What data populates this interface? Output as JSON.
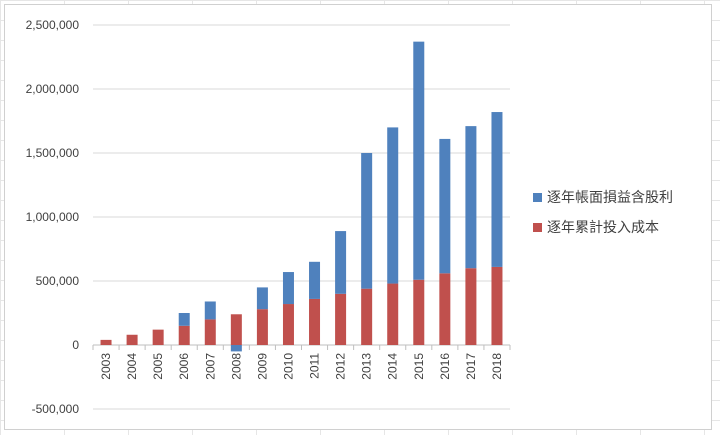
{
  "chart_data": {
    "type": "bar",
    "stacked": true,
    "title": "",
    "xlabel": "",
    "ylabel": "",
    "ylim": [
      -500000,
      2500000
    ],
    "ytick_step": 500000,
    "ytick_labels": [
      "-500,000",
      "0",
      "500,000",
      "1,000,000",
      "1,500,000",
      "2,000,000",
      "2,500,000"
    ],
    "grid": true,
    "legend_position": "right",
    "categories": [
      "2003",
      "2004",
      "2005",
      "2006",
      "2007",
      "2008",
      "2009",
      "2010",
      "2011",
      "2012",
      "2013",
      "2014",
      "2015",
      "2016",
      "2017",
      "2018"
    ],
    "series": [
      {
        "name": "逐年累計投入成本",
        "color": "#c0504d",
        "values": [
          40000,
          80000,
          120000,
          150000,
          200000,
          240000,
          280000,
          320000,
          360000,
          400000,
          440000,
          480000,
          510000,
          560000,
          600000,
          610000
        ]
      },
      {
        "name": "逐年帳面損益含股利",
        "color": "#4f81bd",
        "values": [
          0,
          0,
          0,
          100000,
          140000,
          -50000,
          170000,
          250000,
          290000,
          490000,
          1060000,
          1220000,
          1860000,
          1050000,
          1110000,
          1210000
        ]
      }
    ]
  }
}
